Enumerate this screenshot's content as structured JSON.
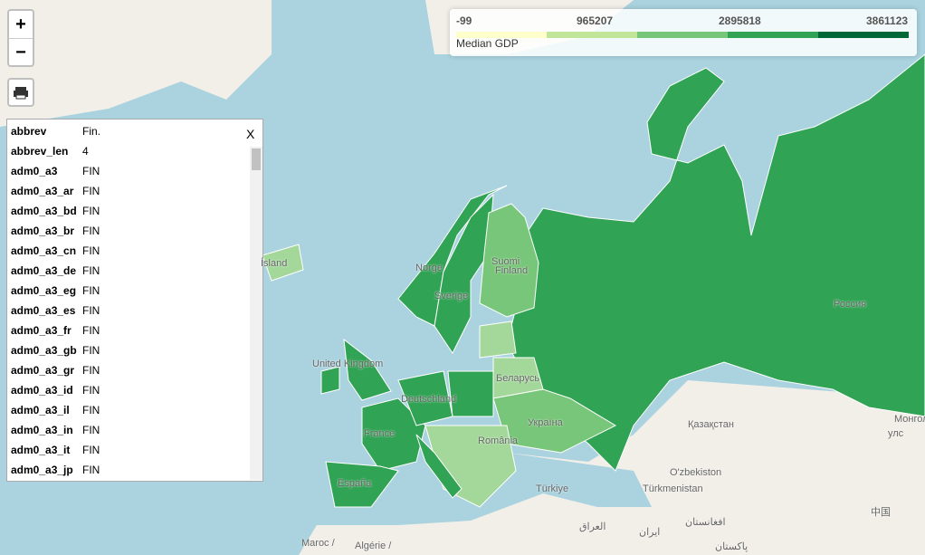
{
  "controls": {
    "zoom_in": "+",
    "zoom_out": "−"
  },
  "legend": {
    "title": "Median GDP",
    "ticks": [
      -99,
      965207,
      2895818,
      3861123
    ],
    "colors": [
      "#ffffcc",
      "#c2e699",
      "#78c679",
      "#31a354",
      "#006837"
    ]
  },
  "popup": {
    "close": "X",
    "rows": [
      [
        "abbrev",
        "Fin."
      ],
      [
        "abbrev_len",
        "4"
      ],
      [
        "adm0_a3",
        "FIN"
      ],
      [
        "adm0_a3_ar",
        "FIN"
      ],
      [
        "adm0_a3_bd",
        "FIN"
      ],
      [
        "adm0_a3_br",
        "FIN"
      ],
      [
        "adm0_a3_cn",
        "FIN"
      ],
      [
        "adm0_a3_de",
        "FIN"
      ],
      [
        "adm0_a3_eg",
        "FIN"
      ],
      [
        "adm0_a3_es",
        "FIN"
      ],
      [
        "adm0_a3_fr",
        "FIN"
      ],
      [
        "adm0_a3_gb",
        "FIN"
      ],
      [
        "adm0_a3_gr",
        "FIN"
      ],
      [
        "adm0_a3_id",
        "FIN"
      ],
      [
        "adm0_a3_il",
        "FIN"
      ],
      [
        "adm0_a3_in",
        "FIN"
      ],
      [
        "adm0_a3_it",
        "FIN"
      ],
      [
        "adm0_a3_jp",
        "FIN"
      ]
    ]
  },
  "map": {
    "labels": [
      "Ísland",
      "Norge",
      "Suomi",
      "Finland",
      "Sverige",
      "United Kingdom",
      "Deutschland",
      "France",
      "España",
      "Беларусь",
      "Україна",
      "România",
      "Россия",
      "Қазақстан",
      "Монгол",
      "улс",
      "O'zbekiston",
      "Türkmenistan",
      "Türkiye",
      "العراق",
      "افغانستان",
      "ایران",
      "پاکستان",
      "中国",
      "Maroc /",
      "Algérie /"
    ]
  }
}
